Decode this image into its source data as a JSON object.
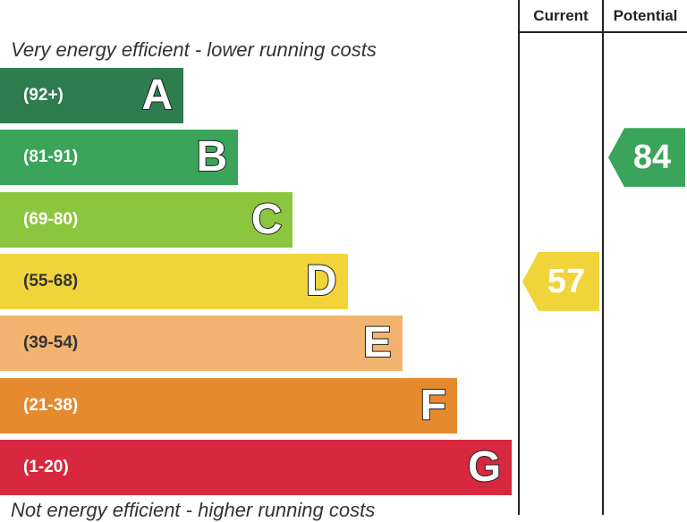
{
  "chart_data": {
    "type": "bar",
    "title": "",
    "header": {
      "current_label": "Current",
      "potential_label": "Potential"
    },
    "top_caption": "Very energy efficient - lower running costs",
    "bottom_caption": "Not energy efficient - higher running costs",
    "bands": [
      {
        "letter": "A",
        "range": "(92+)",
        "min": 92,
        "max": 100,
        "color": "#2e7d4f"
      },
      {
        "letter": "B",
        "range": "(81-91)",
        "min": 81,
        "max": 91,
        "color": "#3aa55a"
      },
      {
        "letter": "C",
        "range": "(69-80)",
        "min": 69,
        "max": 80,
        "color": "#8cc63f"
      },
      {
        "letter": "D",
        "range": "(55-68)",
        "min": 55,
        "max": 68,
        "color": "#f0d43a"
      },
      {
        "letter": "E",
        "range": "(39-54)",
        "min": 39,
        "max": 54,
        "color": "#f1b36f"
      },
      {
        "letter": "F",
        "range": "(21-38)",
        "min": 21,
        "max": 38,
        "color": "#e58a2e"
      },
      {
        "letter": "G",
        "range": "(1-20)",
        "min": 1,
        "max": 20,
        "color": "#d72840"
      }
    ],
    "current": {
      "value": "57",
      "band": "D",
      "color": "#f0d43a"
    },
    "potential": {
      "value": "84",
      "band": "B",
      "color": "#3aa55a"
    }
  }
}
